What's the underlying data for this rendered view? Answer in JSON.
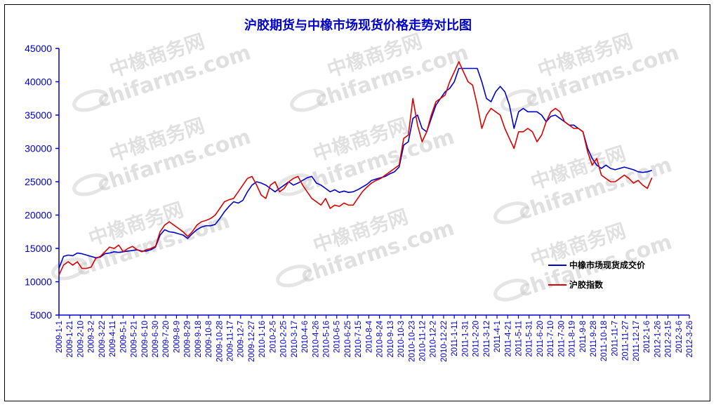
{
  "chart_data": {
    "type": "line",
    "title": "沪胶期货与中橡市场现货价格走势对比图",
    "xlabel": "",
    "ylabel": "",
    "ylim": [
      5000,
      45000
    ],
    "yticks": [
      "45000",
      "40000",
      "35000",
      "30000",
      "25000",
      "20000",
      "15000",
      "10000",
      "5000"
    ],
    "xticks": [
      "2009-1-1",
      "2009-1-21",
      "2009-2-10",
      "2009-3-2",
      "2009-3-22",
      "2009-4-11",
      "2009-5-1",
      "2009-5-21",
      "2009-6-10",
      "2009-6-30",
      "2009-7-20",
      "2009-8-9",
      "2009-8-29",
      "2009-9-18",
      "2009-10-8",
      "2009-10-28",
      "2009-11-17",
      "2009-12-7",
      "2009-12-27",
      "2010-1-16",
      "2010-2-5",
      "2010-2-25",
      "2010-3-17",
      "2010-4-6",
      "2010-4-26",
      "2010-5-16",
      "2010-6-5",
      "2010-6-25",
      "2010-7-15",
      "2010-8-4",
      "2010-8-24",
      "2010-9-13",
      "2010-10-3",
      "2010-10-23",
      "2010-11-12",
      "2010-12-2",
      "2010-12-22",
      "2011-1-11",
      "2011-1-31",
      "2011-2-20",
      "2011-3-12",
      "2011-4-1",
      "2011-4-21",
      "2011-5-11",
      "2011-5-31",
      "2011-6-20",
      "2011-7-10",
      "2011-7-30",
      "2011-8-19",
      "2011-9-8",
      "2011-9-28",
      "2011-10-18",
      "2011-11-7",
      "2011-11-27",
      "2011-12-17",
      "2012-1-6",
      "2012-1-26",
      "2012-2-15",
      "2012-3-6",
      "2012-3-26"
    ],
    "legend_position": "right",
    "grid": false,
    "series": [
      {
        "name": "中橡市场现货成交价",
        "color": "#0000cc",
        "values": [
          12000,
          13800,
          14000,
          13900,
          14300,
          14200,
          14000,
          13800,
          13600,
          13700,
          14200,
          14300,
          14500,
          14400,
          14500,
          14600,
          14700,
          14800,
          14600,
          14600,
          14800,
          15200,
          17000,
          17800,
          17500,
          17400,
          17200,
          17000,
          16500,
          17200,
          17800,
          18200,
          18400,
          18400,
          18600,
          19500,
          20500,
          21300,
          22000,
          21800,
          22200,
          23500,
          24500,
          25000,
          24800,
          24500,
          24000,
          23500,
          24000,
          24500,
          25000,
          24500,
          24800,
          25200,
          25600,
          25800,
          24800,
          24500,
          24000,
          23500,
          23800,
          23400,
          23600,
          23400,
          23500,
          23800,
          24200,
          24600,
          25200,
          25400,
          25600,
          25800,
          26200,
          26500,
          27200,
          30500,
          31000,
          34500,
          35000,
          33000,
          32500,
          34500,
          36500,
          37500,
          38500,
          39000,
          40000,
          42000,
          42000,
          42000,
          42000,
          42000,
          40000,
          37500,
          37000,
          38500,
          39300,
          38500,
          36500,
          33000,
          35500,
          36000,
          35500,
          35500,
          35500,
          35000,
          34000,
          34800,
          35000,
          34500,
          34000,
          33500,
          33500,
          33000,
          32500,
          30000,
          28500,
          27500,
          27000,
          27500,
          27000,
          26800,
          27000,
          27200,
          27000,
          26800,
          26500,
          26400,
          26500,
          26700
        ]
      },
      {
        "name": "沪胶指数",
        "color": "#dd0000",
        "values": [
          11000,
          12500,
          13000,
          12500,
          13000,
          12000,
          12000,
          12200,
          13500,
          13800,
          14500,
          15200,
          15000,
          15500,
          14500,
          15000,
          15300,
          14800,
          14500,
          14800,
          15000,
          15300,
          17500,
          18500,
          19000,
          18500,
          18000,
          17500,
          16800,
          17500,
          18500,
          19000,
          19200,
          19500,
          20000,
          21000,
          22000,
          22300,
          22500,
          23500,
          24500,
          25500,
          25800,
          24500,
          23000,
          22500,
          24500,
          25000,
          23500,
          24000,
          25000,
          25500,
          25800,
          24500,
          23500,
          22500,
          22000,
          21500,
          22500,
          21000,
          21500,
          21300,
          21800,
          21500,
          21500,
          22500,
          23500,
          24200,
          24800,
          25200,
          25500,
          26000,
          26500,
          27000,
          27500,
          31500,
          32000,
          37500,
          33500,
          31000,
          32500,
          35000,
          37000,
          37500,
          38000,
          40000,
          41500,
          43000,
          41500,
          40000,
          39500,
          36500,
          33000,
          35000,
          36000,
          35500,
          35000,
          33000,
          31500,
          30000,
          32500,
          32500,
          33000,
          32500,
          31000,
          32000,
          34000,
          35500,
          36000,
          35500,
          34000,
          33500,
          33000,
          33000,
          32500,
          29500,
          27500,
          28500,
          26000,
          25500,
          25000,
          25000,
          25500,
          26000,
          25500,
          24800,
          25200,
          24500,
          24000,
          25600
        ]
      }
    ],
    "watermarks": [
      "中橡商务网",
      "chifarms.com"
    ]
  }
}
